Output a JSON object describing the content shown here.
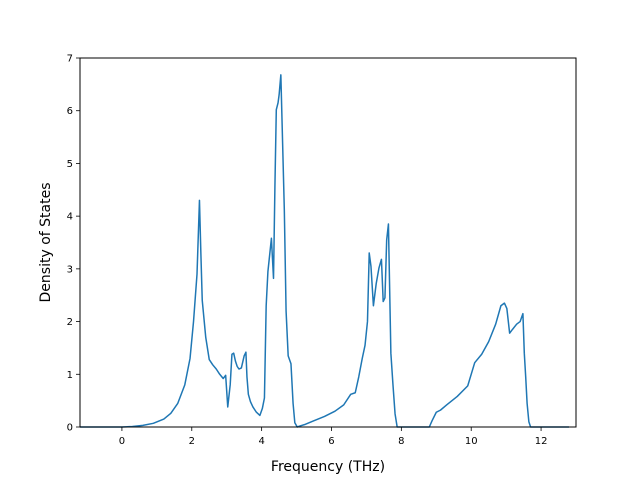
{
  "chart_data": {
    "type": "line",
    "title": "",
    "xlabel": "Frequency (THz)",
    "ylabel": "Density of States",
    "xlim": [
      -1.2,
      13.0
    ],
    "ylim": [
      0,
      7
    ],
    "xticks": [
      0,
      2,
      4,
      6,
      8,
      10,
      12
    ],
    "xtick_labels": [
      "0",
      "2",
      "4",
      "6",
      "8",
      "10",
      "12"
    ],
    "yticks": [
      0,
      1,
      2,
      3,
      4,
      5,
      6,
      7
    ],
    "ytick_labels": [
      "0",
      "1",
      "2",
      "3",
      "4",
      "5",
      "6",
      "7"
    ],
    "grid": false,
    "legend": "none",
    "series": [
      {
        "color": "#1f77b4",
        "x": [
          -1.2,
          -0.5,
          0.0,
          0.3,
          0.6,
          0.9,
          1.2,
          1.4,
          1.6,
          1.8,
          1.95,
          2.05,
          2.15,
          2.22,
          2.26,
          2.3,
          2.4,
          2.5,
          2.6,
          2.7,
          2.8,
          2.9,
          2.97,
          3.03,
          3.1,
          3.15,
          3.2,
          3.25,
          3.3,
          3.35,
          3.42,
          3.5,
          3.55,
          3.58,
          3.62,
          3.68,
          3.75,
          3.85,
          3.95,
          4.02,
          4.08,
          4.13,
          4.18,
          4.28,
          4.34,
          4.38,
          4.42,
          4.47,
          4.5,
          4.55,
          4.6,
          4.65,
          4.7,
          4.76,
          4.84,
          4.9,
          4.95,
          5.02,
          5.1,
          5.25,
          5.5,
          5.8,
          6.1,
          6.35,
          6.55,
          6.68,
          6.78,
          6.88,
          6.96,
          7.03,
          7.08,
          7.13,
          7.2,
          7.28,
          7.36,
          7.43,
          7.48,
          7.53,
          7.58,
          7.63,
          7.7,
          7.76,
          7.82,
          7.88,
          7.93,
          7.97,
          8.02,
          8.2,
          8.5,
          8.8,
          8.88,
          9.0,
          9.12,
          9.3,
          9.6,
          9.9,
          10.1,
          10.3,
          10.5,
          10.7,
          10.85,
          10.95,
          11.02,
          11.1,
          11.18,
          11.3,
          11.4,
          11.48,
          11.52,
          11.56,
          11.6,
          11.65,
          11.7,
          12.0,
          12.8
        ],
        "y": [
          0,
          0,
          0.0,
          0.01,
          0.03,
          0.07,
          0.15,
          0.26,
          0.45,
          0.8,
          1.3,
          2.0,
          2.9,
          4.3,
          3.3,
          2.4,
          1.7,
          1.28,
          1.18,
          1.1,
          1.0,
          0.92,
          0.98,
          0.38,
          0.8,
          1.38,
          1.4,
          1.25,
          1.15,
          1.1,
          1.12,
          1.35,
          1.42,
          0.95,
          0.62,
          0.48,
          0.38,
          0.28,
          0.22,
          0.35,
          0.55,
          2.3,
          2.95,
          3.58,
          2.82,
          4.55,
          6.02,
          6.15,
          6.3,
          6.68,
          5.4,
          4.1,
          2.2,
          1.35,
          1.2,
          0.45,
          0.08,
          0.0,
          0.02,
          0.05,
          0.12,
          0.2,
          0.3,
          0.42,
          0.62,
          0.65,
          0.95,
          1.3,
          1.55,
          2.0,
          3.3,
          3.05,
          2.3,
          2.72,
          3.02,
          3.18,
          2.38,
          2.45,
          3.55,
          3.85,
          1.4,
          0.8,
          0.25,
          0.0,
          0.0,
          0.0,
          0.0,
          0.0,
          0.0,
          0.0,
          0.12,
          0.28,
          0.32,
          0.42,
          0.58,
          0.78,
          1.22,
          1.38,
          1.62,
          1.95,
          2.3,
          2.35,
          2.25,
          1.78,
          1.85,
          1.95,
          2.0,
          2.15,
          1.4,
          0.95,
          0.45,
          0.1,
          0.0,
          0.0,
          0.0
        ]
      }
    ]
  }
}
